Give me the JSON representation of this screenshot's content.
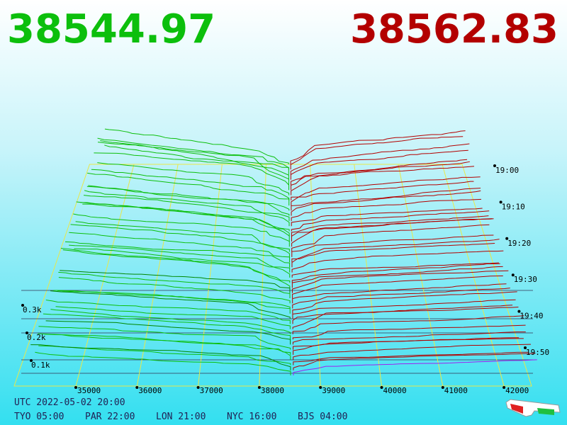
{
  "bid_price": "38544.97",
  "ask_price": "38562.83",
  "price_axis": [
    "35000",
    "36000",
    "37000",
    "38000",
    "39000",
    "40000",
    "41000",
    "42000"
  ],
  "time_axis": [
    "19:00",
    "19:10",
    "19:20",
    "19:30",
    "19:40",
    "19:50"
  ],
  "volume_axis": [
    "0.3k",
    "0.2k",
    "0.1k"
  ],
  "footer": {
    "utc": "UTC 2022-05-02 20:00",
    "zones": [
      "TYO 05:00",
      "PAR 22:00",
      "LON 21:00",
      "NYC 16:00",
      "BJS 04:00"
    ]
  }
}
